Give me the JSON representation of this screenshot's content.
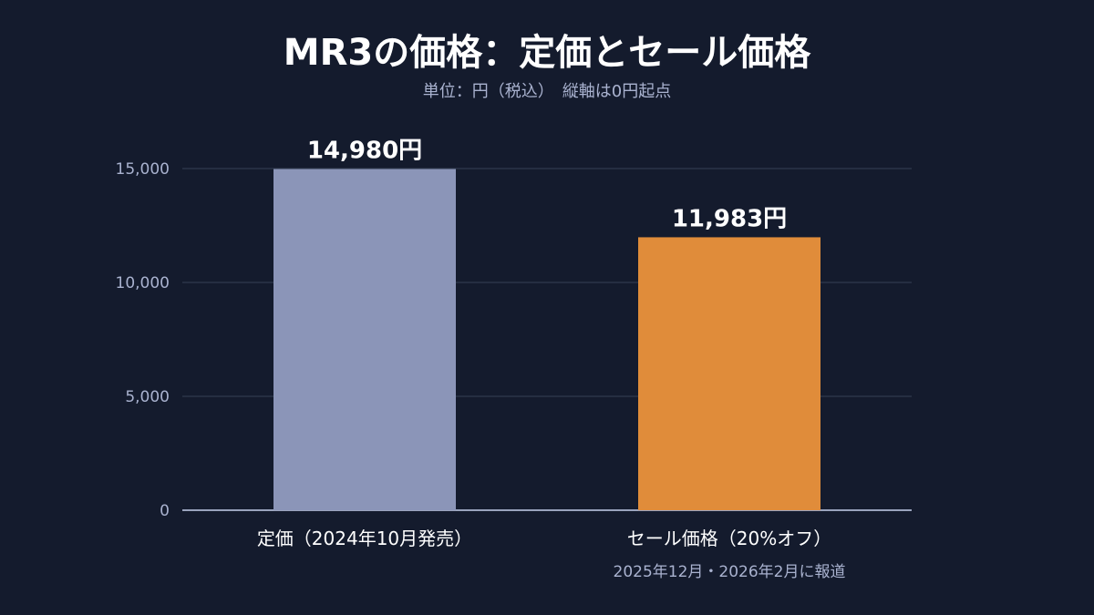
{
  "header": {
    "title": "MR3の価格：定価とセール価格",
    "subtitle": "単位：円（税込）　縦軸は0円起点"
  },
  "colors": {
    "background": "#141b2d",
    "grid": "#2b3448",
    "axis": "#9aa3bd",
    "tick_text": "#a9b2cf",
    "value_text": "#ffffff",
    "category_text": "#ffffff",
    "note_text": "#a9b2cf",
    "bar_regular": "#8b95b8",
    "bar_sale": "#e08c3a"
  },
  "chart_data": {
    "type": "bar",
    "title": "MR3の価格：定価とセール価格",
    "subtitle": "単位：円（税込）　縦軸は0円起点",
    "categories": [
      "定価（2024年10月発売）",
      "セール価格（20%オフ）"
    ],
    "category_notes": [
      "",
      "2025年12月・2026年2月に報道"
    ],
    "values": [
      14980,
      11983
    ],
    "value_labels": [
      "14,980円",
      "11,983円"
    ],
    "bar_colors": [
      "#8b95b8",
      "#e08c3a"
    ],
    "ylim": [
      0,
      15000
    ],
    "yticks": [
      0,
      5000,
      10000,
      15000
    ],
    "ytick_labels": [
      "0",
      "5,000",
      "10,000",
      "15,000"
    ],
    "grid": true,
    "legend": "none"
  }
}
